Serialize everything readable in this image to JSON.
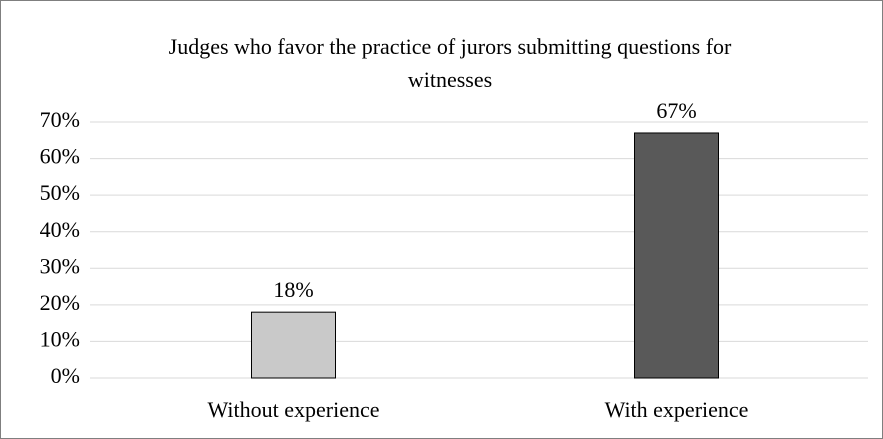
{
  "chart_data": {
    "type": "bar",
    "title": "Judges who favor the practice of jurors submitting questions for witnesses",
    "categories": [
      "Without experience",
      "With experience"
    ],
    "values": [
      18,
      67
    ],
    "value_labels": [
      "18%",
      "67%"
    ],
    "colors": [
      "#c9c9c9",
      "#595959"
    ],
    "ylim": [
      0,
      70
    ],
    "yticks": [
      {
        "value": 0,
        "label": "0%"
      },
      {
        "value": 10,
        "label": "10%"
      },
      {
        "value": 20,
        "label": "20%"
      },
      {
        "value": 30,
        "label": "30%"
      },
      {
        "value": 40,
        "label": "40%"
      },
      {
        "value": 50,
        "label": "50%"
      },
      {
        "value": 60,
        "label": "60%"
      },
      {
        "value": 70,
        "label": "70%"
      }
    ],
    "grid": true
  }
}
